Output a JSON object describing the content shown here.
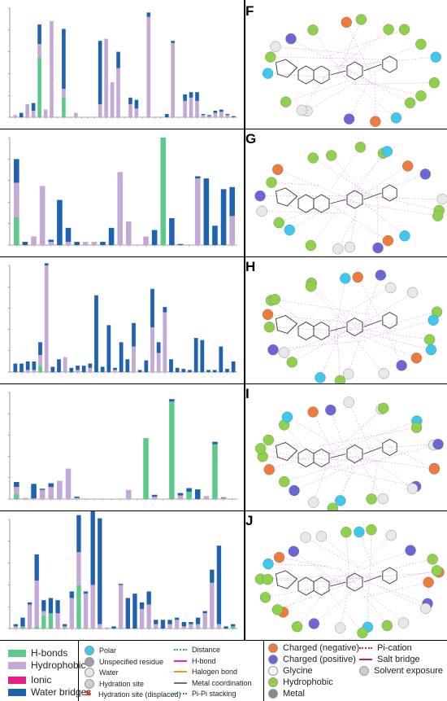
{
  "panels": [
    {
      "letter": "F"
    },
    {
      "letter": "G"
    },
    {
      "letter": "H"
    },
    {
      "letter": "I"
    },
    {
      "letter": "J"
    }
  ],
  "legend": {
    "contact_types": [
      {
        "label": "H-bonds",
        "color": "#5ec98a"
      },
      {
        "label": "Hydrophobic",
        "color": "#c3a9d6"
      },
      {
        "label": "Ionic",
        "color": "#ea1e86"
      },
      {
        "label": "Water bridges",
        "color": "#1f62b0"
      }
    ],
    "residue_types_a": [
      {
        "label": "Polar",
        "icon": "polar-circle-icon",
        "color": "#3ec8f0"
      },
      {
        "label": "Unspecified residue",
        "icon": "unspecified-circle-icon",
        "color": "#9e9e9e"
      },
      {
        "label": "Water",
        "icon": "water-circle-icon",
        "color": "#e6e6e6"
      },
      {
        "label": "Hydration site",
        "icon": "hydration-site-icon",
        "color": "#cfcfcf"
      },
      {
        "label": "Hydration site (displaced)",
        "icon": "red-x-icon",
        "color": "#e0241b"
      }
    ],
    "interaction_lines": [
      {
        "label": "Distance",
        "icon": "dotted-line-icon",
        "color": "#2db34a"
      },
      {
        "label": "H-bond",
        "icon": "magenta-arrow-icon",
        "color": "#d62bd0"
      },
      {
        "label": "Halogen bond",
        "icon": "orange-arrow-icon",
        "color": "#e69b1e"
      },
      {
        "label": "Metal coordination",
        "icon": "gray-line-icon",
        "color": "#707070"
      },
      {
        "label": "Pi-Pi stacking",
        "icon": "green-dot-line-icon",
        "color": "#2aa84a"
      }
    ],
    "residue_types_b": [
      {
        "label": "Charged (negative)",
        "icon": "orange-circle-icon",
        "color": "#f07a3c"
      },
      {
        "label": "Charged (positive)",
        "icon": "purple-circle-icon",
        "color": "#6a66d6"
      },
      {
        "label": "Glycine",
        "icon": "glycine-circle-icon",
        "color": "#f5f5f5"
      },
      {
        "label": "Hydrophobic",
        "icon": "green-circle-icon",
        "color": "#8ed14a"
      },
      {
        "label": "Metal",
        "icon": "metal-circle-icon",
        "color": "#8a8a8a"
      }
    ],
    "special_lines": [
      {
        "label": "Pi-cation",
        "icon": "red-dot-line-icon",
        "color": "#e0241b"
      },
      {
        "label": "Salt bridge",
        "icon": "salt-bridge-line-icon",
        "color": "#c0245e"
      },
      {
        "label": "Solvent exposure",
        "icon": "solvent-exposure-icon",
        "color": "#cccccc"
      }
    ]
  },
  "chart_data": [
    {
      "type": "bar",
      "panel": "F",
      "ylim": [
        0,
        1.0
      ],
      "series": [
        {
          "name": "H-bonds",
          "values": [
            0,
            0,
            0,
            0,
            0.55,
            0,
            0,
            0,
            0.18,
            0,
            0,
            0,
            0,
            0,
            0,
            0,
            0,
            0,
            0,
            0,
            0,
            0,
            0,
            0,
            0,
            0,
            0,
            0,
            0,
            0,
            0,
            0,
            0,
            0,
            0,
            0,
            0
          ]
        },
        {
          "name": "Hydrophobic",
          "values": [
            0.02,
            0,
            0.12,
            0.06,
            0.12,
            0.07,
            0.88,
            0,
            0.08,
            0,
            0.04,
            0,
            0,
            0,
            0.12,
            0.72,
            0.32,
            0.45,
            0,
            0.12,
            0.08,
            0,
            0.92,
            0,
            0,
            0,
            0.68,
            0,
            0.15,
            0.18,
            0.15,
            0.02,
            0.01,
            0.04,
            0.05,
            0.02,
            0
          ]
        },
        {
          "name": "Water bridges",
          "values": [
            0,
            0.04,
            0,
            0.07,
            0.18,
            0,
            0,
            0,
            0.55,
            0,
            0,
            0,
            0,
            0,
            0.58,
            0,
            0,
            0.15,
            0,
            0.06,
            0.08,
            0,
            0.04,
            0,
            0,
            0.03,
            0.02,
            0,
            0.06,
            0.05,
            0.08,
            0.01,
            0.01,
            0.02,
            0.02,
            0.01,
            0.01
          ]
        }
      ]
    },
    {
      "type": "bar",
      "panel": "G",
      "ylim": [
        0,
        1.0
      ],
      "series": [
        {
          "name": "H-bonds",
          "values": [
            0.26,
            0,
            0,
            0,
            0,
            0,
            0,
            0,
            0,
            0,
            0,
            0,
            0,
            0,
            0,
            0,
            0,
            1.0,
            0,
            0,
            0,
            0,
            0,
            0,
            0,
            0
          ]
        },
        {
          "name": "Hydrophobic",
          "values": [
            0.32,
            0,
            0.08,
            0.55,
            0.03,
            0,
            0.03,
            0,
            0.03,
            0.03,
            0,
            0,
            0.68,
            0.22,
            0,
            0.08,
            0,
            0,
            0,
            0,
            0,
            0.62,
            0,
            0,
            0,
            0.27
          ]
        },
        {
          "name": "Water bridges",
          "values": [
            0.22,
            0.03,
            0,
            0,
            0.02,
            0.42,
            0.13,
            0.03,
            0,
            0,
            0.03,
            0.16,
            0,
            0,
            0,
            0,
            0.14,
            0,
            0.25,
            0.01,
            0,
            0.02,
            0.62,
            0.18,
            0.52,
            0.27
          ]
        }
      ]
    },
    {
      "type": "bar",
      "panel": "H",
      "ylim": [
        0,
        1.0
      ],
      "series": [
        {
          "name": "H-bonds",
          "values": [
            0,
            0,
            0,
            0,
            0.06,
            0,
            0,
            0,
            0,
            0,
            0,
            0,
            0,
            0,
            0,
            0,
            0,
            0,
            0,
            0,
            0,
            0,
            0,
            0,
            0,
            0,
            0,
            0,
            0,
            0,
            0,
            0,
            0,
            0,
            0,
            0
          ]
        },
        {
          "name": "Hydrophobic",
          "values": [
            0,
            0,
            0.02,
            0.02,
            0.1,
            1.0,
            0,
            0,
            0.14,
            0,
            0.02,
            0,
            0.04,
            0,
            0,
            0,
            0.02,
            0,
            0,
            0.24,
            0,
            0,
            0.42,
            0.18,
            0.56,
            0,
            0,
            0,
            0,
            0,
            0,
            0,
            0,
            0,
            0,
            0
          ]
        },
        {
          "name": "Water bridges",
          "values": [
            0.08,
            0.08,
            0.08,
            0.08,
            0.12,
            0.02,
            0.05,
            0.12,
            0,
            0.04,
            0.04,
            0.06,
            0.04,
            0.72,
            0.05,
            0.44,
            0.02,
            0.28,
            0.12,
            0.22,
            0.02,
            0.11,
            0.36,
            0.1,
            0.05,
            0.12,
            0.04,
            0.03,
            0.02,
            0.32,
            0.3,
            0.02,
            0.02,
            0.24,
            0.03,
            0.1
          ]
        }
      ]
    },
    {
      "type": "bar",
      "panel": "I",
      "ylim": [
        0,
        1.75
      ],
      "series": [
        {
          "name": "H-bonds",
          "values": [
            0.08,
            0,
            0,
            0,
            0,
            0,
            0,
            0,
            0,
            0,
            0,
            0,
            0,
            0,
            0,
            1.0,
            0,
            0,
            1.6,
            0,
            0.12,
            0,
            0,
            0.9,
            0,
            0
          ]
        },
        {
          "name": "Hydrophobic",
          "values": [
            0.12,
            0.02,
            0.01,
            0.15,
            0.2,
            0.3,
            0.5,
            0.02,
            0,
            0,
            0,
            0,
            0,
            0.15,
            0,
            0,
            0.04,
            0,
            0,
            0.06,
            0,
            0,
            0.05,
            0,
            0.02,
            0.01
          ]
        },
        {
          "name": "Water bridges",
          "values": [
            0.08,
            0,
            0.24,
            0.02,
            0.06,
            0,
            0,
            0.02,
            0,
            0,
            0,
            0,
            0,
            0,
            0,
            0,
            0.03,
            0,
            0.04,
            0.04,
            0.06,
            0.16,
            0,
            0.04,
            0.01,
            0
          ]
        }
      ]
    },
    {
      "type": "bar",
      "panel": "J",
      "ylim": [
        0,
        1.0
      ],
      "series": [
        {
          "name": "H-bonds",
          "values": [
            0,
            0.02,
            0,
            0.02,
            0.12,
            0.14,
            0,
            0,
            0,
            0.4,
            0,
            0,
            0,
            0,
            0,
            0,
            0,
            0,
            0,
            0,
            0,
            0,
            0,
            0,
            0,
            0,
            0,
            0,
            0,
            0,
            0,
            0.02
          ]
        },
        {
          "name": "Hydrophobic",
          "values": [
            0.02,
            0,
            0.22,
            0.42,
            0.04,
            0,
            0.14,
            0.02,
            0.28,
            0.3,
            0.32,
            0.4,
            0.04,
            0.01,
            0,
            0.4,
            0,
            0,
            0.18,
            0.22,
            0.04,
            0,
            0.04,
            0.08,
            0.02,
            0.04,
            0.04,
            0.14,
            0.42,
            0.04,
            0,
            0
          ]
        },
        {
          "name": "Water bridges",
          "values": [
            0.02,
            0.08,
            0.02,
            0.24,
            0.1,
            0.14,
            0.12,
            0.02,
            0.06,
            0.34,
            0.02,
            0.92,
            0.97,
            0,
            0.02,
            0.01,
            0.28,
            0.32,
            0.06,
            0.12,
            0.04,
            0.08,
            0.04,
            0.02,
            0.04,
            0.02,
            0.06,
            0.02,
            0.12,
            0.72,
            0.02,
            0.02
          ]
        }
      ]
    }
  ]
}
